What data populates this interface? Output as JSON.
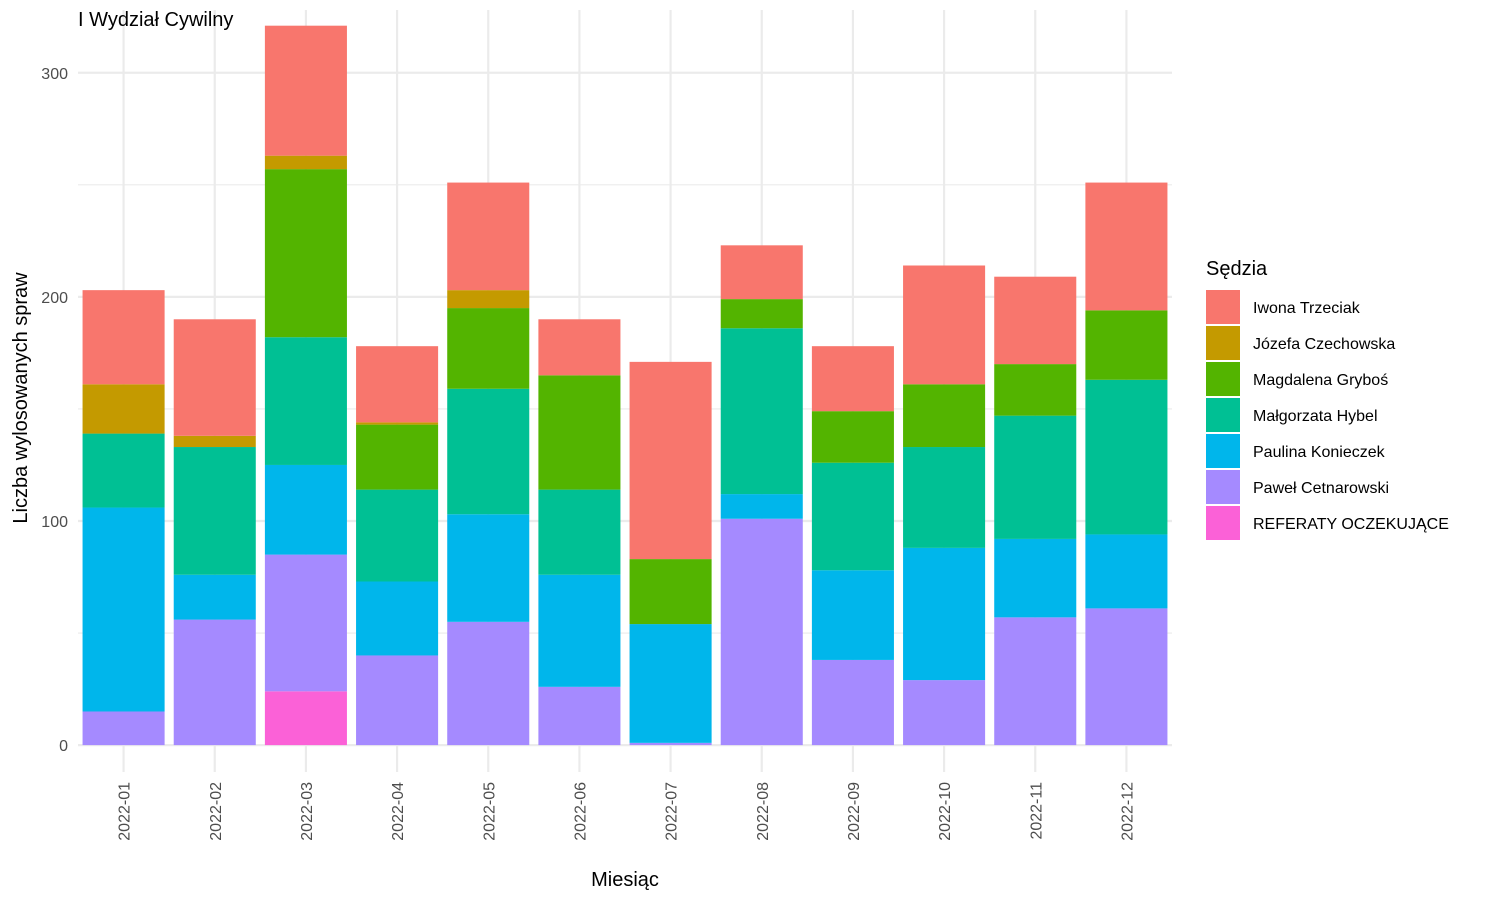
{
  "chart_data": {
    "type": "bar",
    "stacked": true,
    "title": "I Wydział Cywilny",
    "xlabel": "Miesiąc",
    "ylabel": "Liczba wylosowanych spraw",
    "ylim": [
      -12,
      328
    ],
    "yticks": [
      0,
      100,
      200,
      300
    ],
    "grid": true,
    "legend_title": "Sędzia",
    "legend_position": "right",
    "categories": [
      "2022-01",
      "2022-02",
      "2022-03",
      "2022-04",
      "2022-05",
      "2022-06",
      "2022-07",
      "2022-08",
      "2022-09",
      "2022-10",
      "2022-11",
      "2022-12"
    ],
    "series": [
      {
        "name": "Iwona Trzeciak",
        "color": "#F8766D",
        "values": [
          42,
          52,
          58,
          34,
          48,
          25,
          88,
          24,
          29,
          53,
          39,
          57
        ]
      },
      {
        "name": "Józefa Czechowska",
        "color": "#C49A00",
        "values": [
          22,
          5,
          6,
          1,
          8,
          0,
          0,
          0,
          0,
          0,
          0,
          0
        ]
      },
      {
        "name": "Magdalena Gryboś",
        "color": "#53B400",
        "values": [
          0,
          0,
          75,
          29,
          36,
          51,
          29,
          13,
          23,
          28,
          23,
          31
        ]
      },
      {
        "name": "Małgorzata Hybel",
        "color": "#00C094",
        "values": [
          33,
          57,
          57,
          41,
          56,
          38,
          0,
          74,
          48,
          45,
          55,
          69
        ]
      },
      {
        "name": "Paulina Konieczek",
        "color": "#00B6EB",
        "values": [
          91,
          20,
          40,
          33,
          48,
          50,
          53,
          11,
          40,
          59,
          35,
          33
        ]
      },
      {
        "name": "Paweł Cetnarowski",
        "color": "#A58AFF",
        "values": [
          15,
          56,
          61,
          40,
          55,
          26,
          1,
          101,
          38,
          29,
          57,
          61
        ]
      },
      {
        "name": "REFERATY OCZEKUJĄCE",
        "color": "#FB61D7",
        "values": [
          0,
          0,
          24,
          0,
          0,
          0,
          0,
          0,
          0,
          0,
          0,
          0
        ]
      }
    ]
  }
}
